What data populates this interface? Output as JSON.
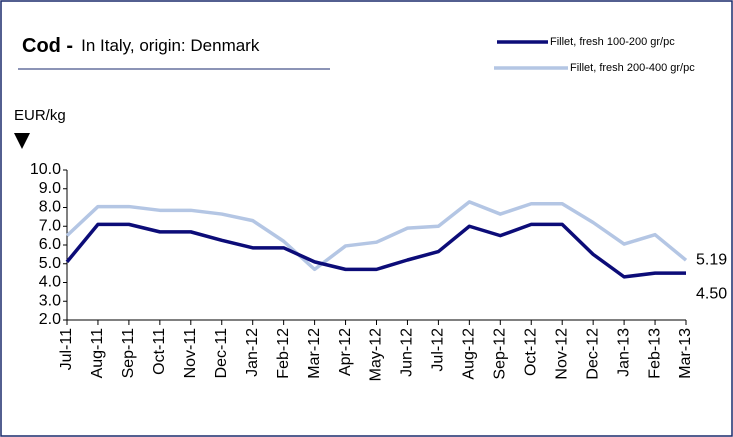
{
  "chart_data": {
    "type": "line",
    "title": "Cod -",
    "subtitle": "In Italy, origin: Denmark",
    "y_label": "EUR/kg",
    "categories": [
      "Jul-11",
      "Aug-11",
      "Sep-11",
      "Oct-11",
      "Nov-11",
      "Dec-11",
      "Jan-12",
      "Feb-12",
      "Mar-12",
      "Apr-12",
      "May-12",
      "Jun-12",
      "Jul-12",
      "Aug-12",
      "Sep-12",
      "Oct-12",
      "Nov-12",
      "Dec-12",
      "Jan-13",
      "Feb-13",
      "Mar-13"
    ],
    "series": [
      {
        "name": "Fillet, fresh 100-200 gr/pc",
        "color": "#0c0c78",
        "values": [
          5.1,
          7.1,
          7.1,
          6.7,
          6.7,
          6.25,
          5.85,
          5.85,
          5.1,
          4.7,
          4.7,
          5.2,
          5.65,
          7.0,
          6.5,
          7.1,
          7.1,
          5.5,
          4.3,
          4.5,
          4.5
        ],
        "value_labels": [
          null,
          null,
          null,
          null,
          null,
          null,
          null,
          null,
          null,
          null,
          null,
          null,
          null,
          null,
          null,
          null,
          null,
          null,
          null,
          null,
          "4.50"
        ]
      },
      {
        "name": "Fillet, fresh 200-400 gr/pc",
        "color": "#b4c6e4",
        "values": [
          6.5,
          8.05,
          8.05,
          7.85,
          7.85,
          7.65,
          7.3,
          6.2,
          4.7,
          5.95,
          6.15,
          6.9,
          7.0,
          8.3,
          7.65,
          8.2,
          8.2,
          7.2,
          6.05,
          6.55,
          5.19
        ],
        "value_labels": [
          null,
          null,
          null,
          null,
          null,
          null,
          null,
          null,
          null,
          null,
          null,
          null,
          null,
          null,
          null,
          null,
          null,
          null,
          null,
          null,
          "5.19"
        ]
      }
    ],
    "ylim": [
      2,
      10
    ],
    "yticks": [
      {
        "value": 2,
        "label": "2.0"
      },
      {
        "value": 3,
        "label": "3.0"
      },
      {
        "value": 4,
        "label": "4.0"
      },
      {
        "value": 5,
        "label": "5.0"
      },
      {
        "value": 6,
        "label": "6.0"
      },
      {
        "value": 7,
        "label": "7.0"
      },
      {
        "value": 8,
        "label": "8.0"
      },
      {
        "value": 9,
        "label": "9.0"
      },
      {
        "value": 10,
        "label": "10.0"
      }
    ],
    "grid": false,
    "legend": "top-right"
  }
}
